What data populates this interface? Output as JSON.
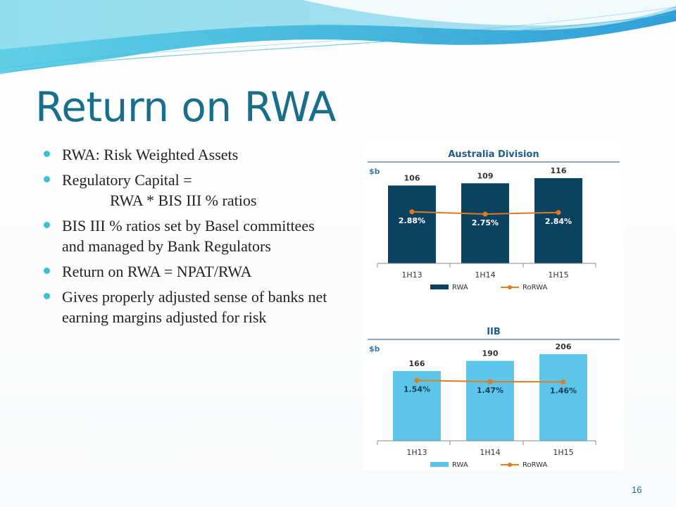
{
  "slide": {
    "title": "Return on RWA",
    "page_number": "16"
  },
  "bullets": [
    "RWA: Risk Weighted Assets",
    "Regulatory Capital =",
    "RWA * BIS III % ratios",
    "BIS III % ratios set by Basel committees and managed by Bank Regulators",
    "Return on RWA = NPAT/RWA",
    "Gives properly adjusted sense of banks net earning margins adjusted for risk"
  ],
  "colors": {
    "title": "#1a6e8a",
    "bullet": "#3cbfd0",
    "australia_bar": "#0b4260",
    "iib_bar": "#5bc5ea",
    "rorwa_line": "#e07b22",
    "chart_title": "#1f5c87"
  },
  "chart_data": [
    {
      "type": "bar",
      "title": "Australia Division",
      "ylabel": "$b",
      "categories": [
        "1H13",
        "1H14",
        "1H15"
      ],
      "series": [
        {
          "name": "RWA",
          "type": "bar",
          "values": [
            106,
            109,
            116
          ],
          "labels": [
            "106",
            "109",
            "116"
          ]
        },
        {
          "name": "RoRWA",
          "type": "line",
          "values": [
            2.88,
            2.75,
            2.84
          ],
          "labels": [
            "2.88%",
            "2.75%",
            "2.84%"
          ]
        }
      ],
      "legend": "bottom"
    },
    {
      "type": "bar",
      "title": "IIB",
      "ylabel": "$b",
      "categories": [
        "1H13",
        "1H14",
        "1H15"
      ],
      "series": [
        {
          "name": "RWA",
          "type": "bar",
          "values": [
            166,
            190,
            206
          ],
          "labels": [
            "166",
            "190",
            "206"
          ]
        },
        {
          "name": "RoRWA",
          "type": "line",
          "values": [
            1.54,
            1.47,
            1.46
          ],
          "labels": [
            "1.54%",
            "1.47%",
            "1.46%"
          ]
        }
      ],
      "legend": "bottom"
    }
  ]
}
